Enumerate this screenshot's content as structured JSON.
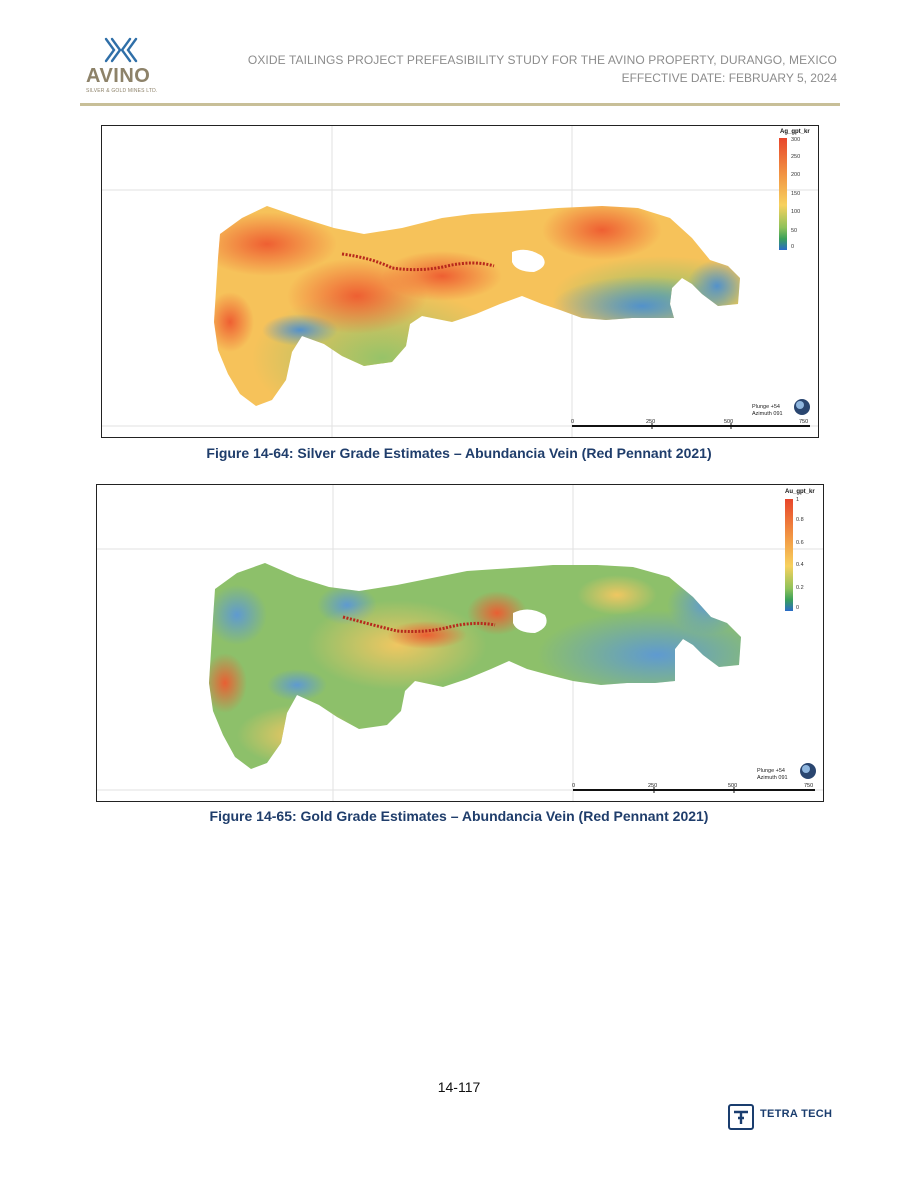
{
  "header": {
    "logo_word": "AVINO",
    "logo_subtext": "SILVER & GOLD MINES LTD.",
    "title": "OXIDE TAILINGS PROJECT PREFEASIBILITY STUDY FOR THE AVINO PROPERTY, DURANGO, MEXICO",
    "date": "EFFECTIVE DATE: FEBRUARY 5, 2024"
  },
  "figures": [
    {
      "caption": "Figure 14-64: Silver Grade Estimates – Abundancia Vein (Red Pennant 2021)",
      "legend_title": "Ag_gpt_kr",
      "legend_ticks": [
        "300",
        "250",
        "200",
        "150",
        "100",
        "50",
        "0"
      ],
      "orientation": "Plunge +54\nAzimuth 091",
      "scale_labels": [
        "0",
        "250",
        "500",
        "750"
      ],
      "colors": {
        "high": "#e8462b",
        "mid": "#f7c45a",
        "low": "#2a7bc8"
      }
    },
    {
      "caption": "Figure 14-65: Gold Grade Estimates – Abundancia Vein (Red Pennant 2021)",
      "legend_title": "Au_gpt_kr",
      "legend_ticks": [
        "1",
        "0.8",
        "0.6",
        "0.4",
        "0.2",
        "0"
      ],
      "orientation": "Plunge +54\nAzimuth 091",
      "scale_labels": [
        "0",
        "250",
        "500",
        "750"
      ],
      "colors": {
        "high": "#e8462b",
        "mid": "#f7c45a",
        "low": "#2a7bc8"
      }
    }
  ],
  "footer": {
    "page_number": "14-117",
    "company": "TETRA TECH"
  }
}
